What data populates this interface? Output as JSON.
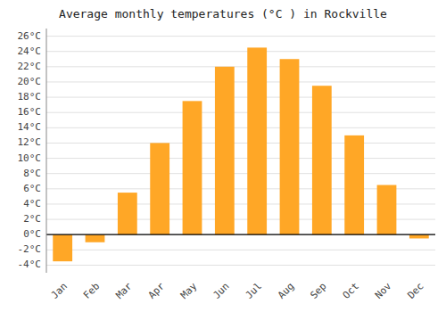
{
  "chart_data": {
    "type": "bar",
    "title": "Average monthly temperatures (°C ) in Rockville",
    "categories": [
      "Jan",
      "Feb",
      "Mar",
      "Apr",
      "May",
      "Jun",
      "Jul",
      "Aug",
      "Sep",
      "Oct",
      "Nov",
      "Dec"
    ],
    "values": [
      -3.5,
      -1.0,
      5.5,
      12.0,
      17.5,
      22.0,
      24.5,
      23.0,
      19.5,
      13.0,
      6.5,
      -0.5
    ],
    "color": "#FFA726",
    "ylim": [
      -5,
      27
    ],
    "yticks": [
      {
        "value": -4,
        "label": "-4°C"
      },
      {
        "value": -2,
        "label": "-2°C"
      },
      {
        "value": 0,
        "label": "0°C"
      },
      {
        "value": 2,
        "label": "2°C"
      },
      {
        "value": 4,
        "label": "4°C"
      },
      {
        "value": 6,
        "label": "6°C"
      },
      {
        "value": 8,
        "label": "8°C"
      },
      {
        "value": 10,
        "label": "10°C"
      },
      {
        "value": 12,
        "label": "12°C"
      },
      {
        "value": 14,
        "label": "14°C"
      },
      {
        "value": 16,
        "label": "16°C"
      },
      {
        "value": 18,
        "label": "18°C"
      },
      {
        "value": 20,
        "label": "20°C"
      },
      {
        "value": 22,
        "label": "22°C"
      },
      {
        "value": 24,
        "label": "24°C"
      },
      {
        "value": 26,
        "label": "26°C"
      }
    ],
    "grid": true
  }
}
